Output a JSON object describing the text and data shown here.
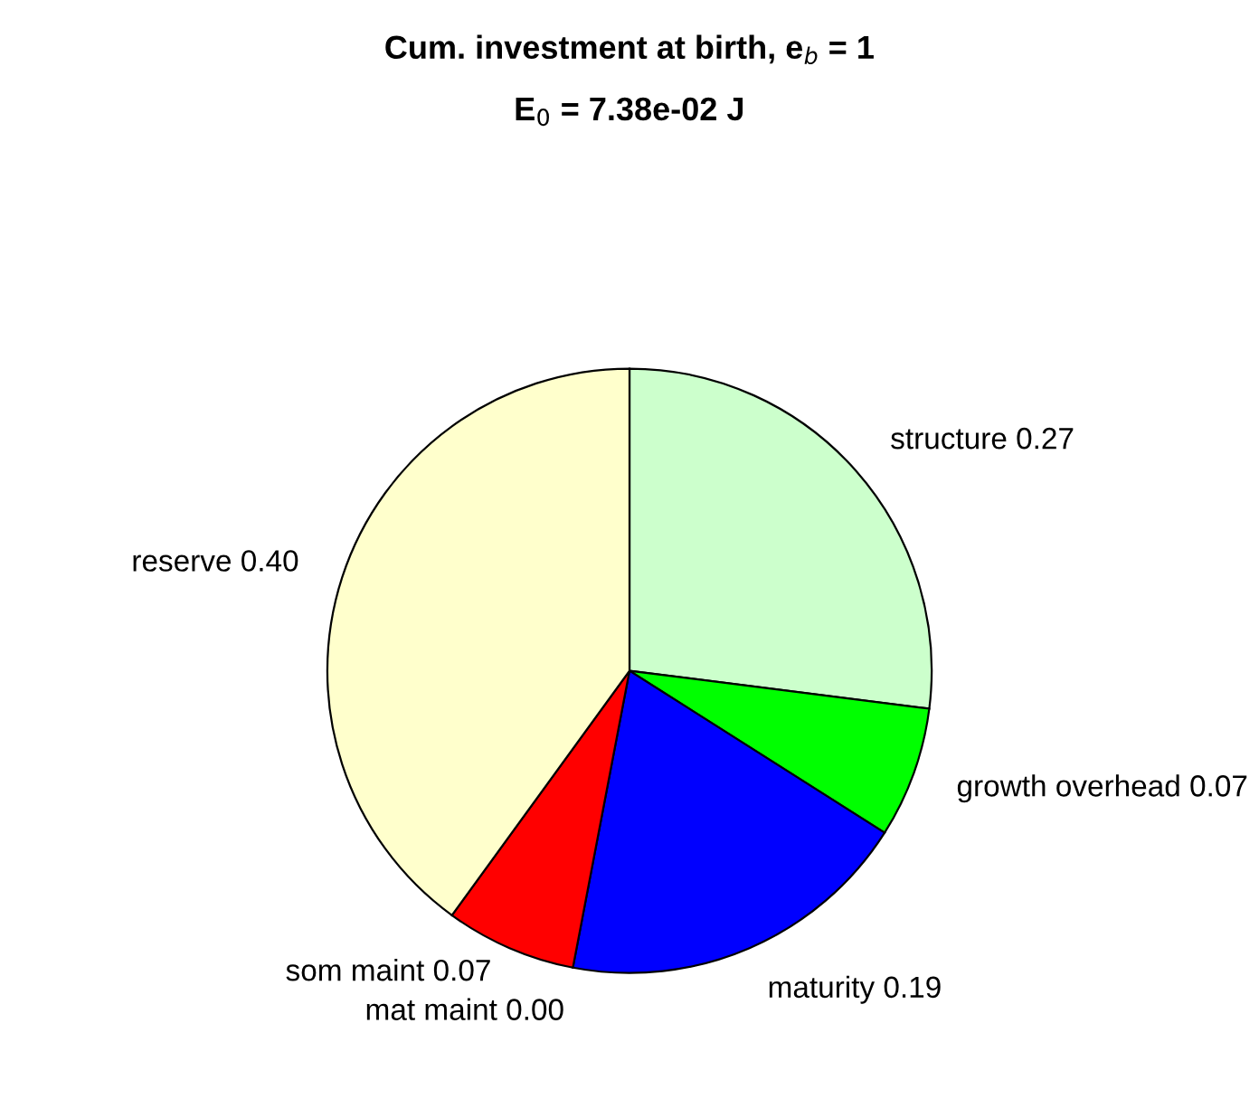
{
  "chart_data": {
    "type": "pie",
    "title": "Cum. investment at birth, e$_{b}$ = 1",
    "subtitle": "E$_{0}$ = 7.38e-02 J",
    "categories": [
      "structure",
      "growth overhead",
      "maturity",
      "mat maint",
      "som maint",
      "reserve"
    ],
    "values": [
      0.27,
      0.07,
      0.19,
      0.0,
      0.07,
      0.4
    ],
    "value_labels": [
      "0.27",
      "0.07",
      "0.19",
      "0.00",
      "0.07",
      "0.40"
    ],
    "colors": [
      "#ccffcc",
      "#00ff00",
      "#0000ff",
      "#ff00ff",
      "#ff0000",
      "#ffffcc"
    ],
    "legend": false
  }
}
